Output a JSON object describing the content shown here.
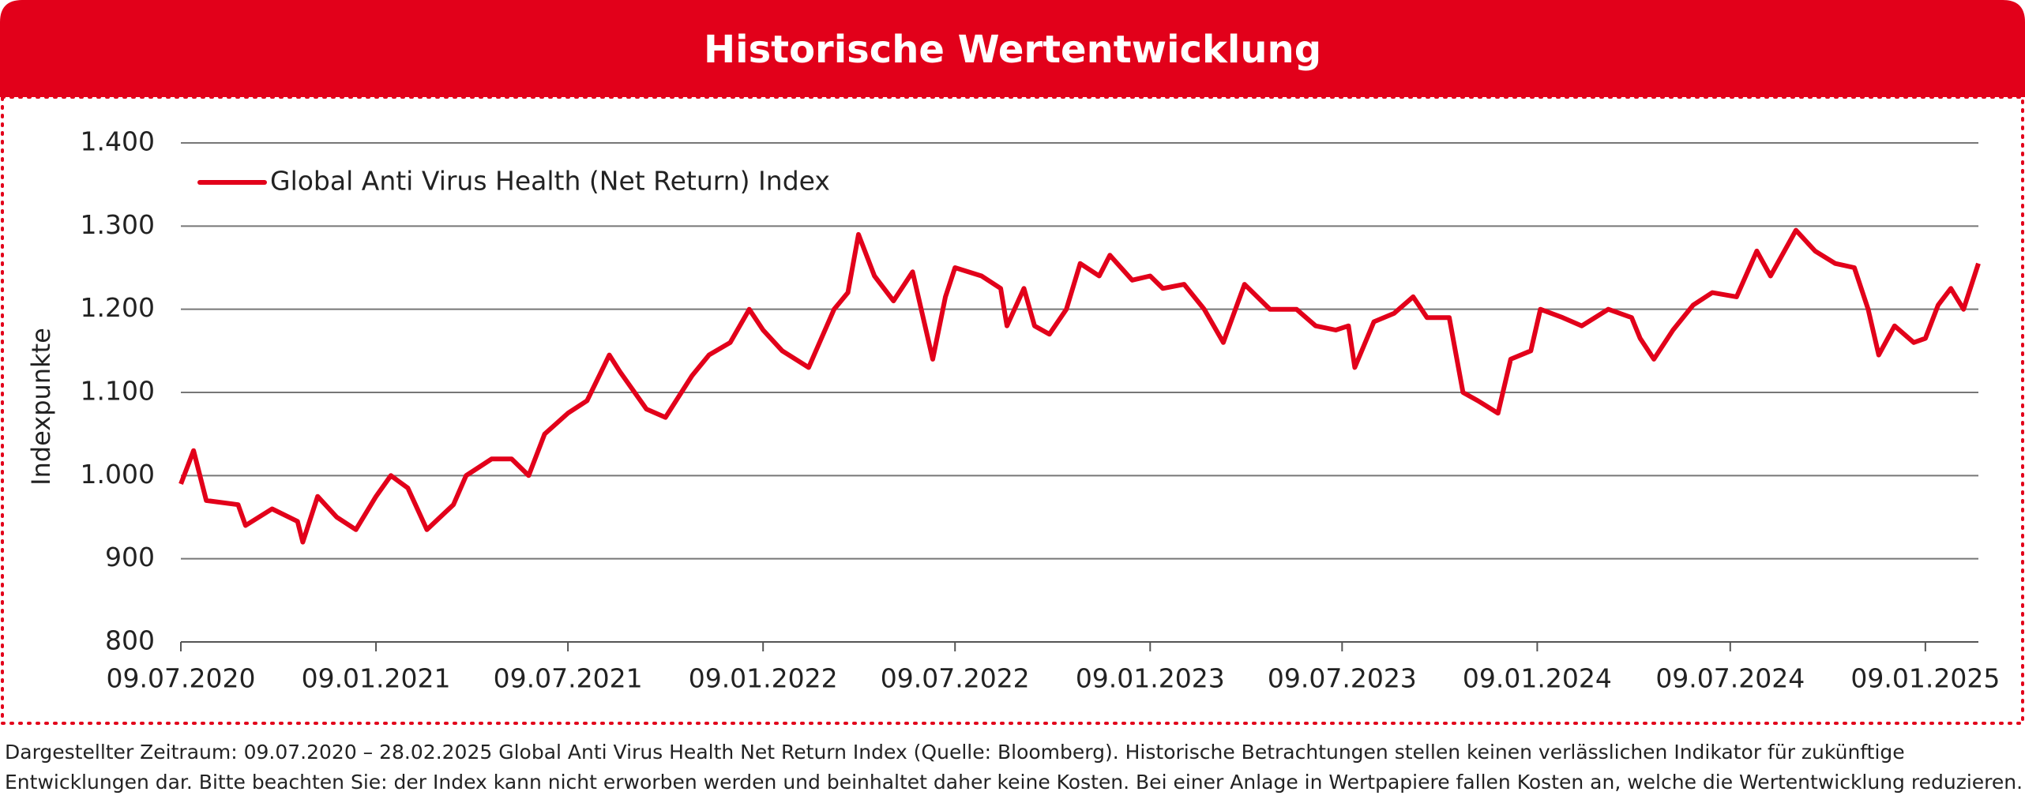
{
  "chart_data": {
    "type": "line",
    "title": "Historische Wertentwicklung",
    "y_label": "Indexpunkte",
    "footnote": [
      "Dargestellter Zeitraum: 09.07.2020 – 28.02.2025 Global Anti Virus Health Net Return Index (Quelle: Bloomberg). Historische Betrachtungen stellen keinen verlässlichen Indikator für zukünftige",
      "Entwicklungen dar. Bitte beachten Sie: der Index kann nicht erworben werden und beinhaltet daher keine Kosten. Bei einer Anlage in Wertpapiere fallen Kosten an, welche die Wertentwicklung reduzieren."
    ],
    "x": [
      "2020-07-09",
      "2020-07-21",
      "2020-08-02",
      "2020-09-01",
      "2020-09-08",
      "2020-10-03",
      "2020-10-27",
      "2020-11-01",
      "2020-11-15",
      "2020-12-03",
      "2020-12-21",
      "2021-01-09",
      "2021-01-23",
      "2021-02-08",
      "2021-02-26",
      "2021-03-23",
      "2021-04-04",
      "2021-04-28",
      "2021-05-17",
      "2021-06-02",
      "2021-06-17",
      "2021-07-09",
      "2021-07-27",
      "2021-08-17",
      "2021-08-27",
      "2021-09-21",
      "2021-10-09",
      "2021-11-03",
      "2021-11-19",
      "2021-12-09",
      "2021-12-27",
      "2022-01-09",
      "2022-01-27",
      "2022-02-21",
      "2022-03-17",
      "2022-03-30",
      "2022-04-09",
      "2022-04-24",
      "2022-05-12",
      "2022-05-30",
      "2022-06-18",
      "2022-06-30",
      "2022-07-09",
      "2022-08-03",
      "2022-08-21",
      "2022-08-27",
      "2022-09-12",
      "2022-09-22",
      "2022-10-06",
      "2022-10-22",
      "2022-11-04",
      "2022-11-22",
      "2022-12-02",
      "2022-12-23",
      "2023-01-09",
      "2023-01-21",
      "2023-02-10",
      "2023-03-01",
      "2023-03-19",
      "2023-04-08",
      "2023-05-02",
      "2023-05-27",
      "2023-06-14",
      "2023-07-03",
      "2023-07-15",
      "2023-07-21",
      "2023-08-08",
      "2023-08-27",
      "2023-09-14",
      "2023-09-27",
      "2023-10-18",
      "2023-10-31",
      "2023-11-14",
      "2023-12-03",
      "2023-12-15",
      "2024-01-03",
      "2024-01-12",
      "2024-02-02",
      "2024-02-20",
      "2024-03-16",
      "2024-04-07",
      "2024-04-15",
      "2024-04-28",
      "2024-05-16",
      "2024-06-04",
      "2024-06-22",
      "2024-07-15",
      "2024-08-03",
      "2024-08-16",
      "2024-09-09",
      "2024-09-27",
      "2024-10-16",
      "2024-11-03",
      "2024-11-16",
      "2024-11-26",
      "2024-12-11",
      "2024-12-29",
      "2025-01-09",
      "2025-01-21",
      "2025-02-02",
      "2025-02-14",
      "2025-02-28"
    ],
    "series": [
      {
        "name": "Global Anti Virus Health (Net Return) Index",
        "color": "#e2001a",
        "values": [
          990,
          1030,
          970,
          965,
          940,
          960,
          945,
          920,
          975,
          950,
          935,
          975,
          1000,
          985,
          935,
          965,
          1000,
          1020,
          1020,
          1000,
          1050,
          1075,
          1090,
          1145,
          1125,
          1080,
          1070,
          1120,
          1145,
          1160,
          1200,
          1175,
          1150,
          1130,
          1200,
          1220,
          1290,
          1240,
          1210,
          1245,
          1140,
          1215,
          1250,
          1240,
          1225,
          1180,
          1225,
          1180,
          1170,
          1200,
          1255,
          1240,
          1265,
          1235,
          1240,
          1225,
          1230,
          1200,
          1160,
          1230,
          1200,
          1200,
          1180,
          1175,
          1180,
          1130,
          1185,
          1195,
          1215,
          1190,
          1190,
          1100,
          1090,
          1075,
          1140,
          1150,
          1200,
          1190,
          1180,
          1200,
          1190,
          1165,
          1140,
          1175,
          1205,
          1220,
          1215,
          1270,
          1240,
          1295,
          1270,
          1255,
          1250,
          1200,
          1145,
          1180,
          1160,
          1165,
          1205,
          1225,
          1200,
          1255
        ]
      }
    ],
    "xlim": [
      "2020-07-09",
      "2025-02-28"
    ],
    "xticks": [
      {
        "value": "2020-07-09",
        "label": "09.07.2020"
      },
      {
        "value": "2021-01-09",
        "label": "09.01.2021"
      },
      {
        "value": "2021-07-09",
        "label": "09.07.2021"
      },
      {
        "value": "2022-01-09",
        "label": "09.01.2022"
      },
      {
        "value": "2022-07-09",
        "label": "09.07.2022"
      },
      {
        "value": "2023-01-09",
        "label": "09.01.2023"
      },
      {
        "value": "2023-07-09",
        "label": "09.07.2023"
      },
      {
        "value": "2024-01-09",
        "label": "09.01.2024"
      },
      {
        "value": "2024-07-09",
        "label": "09.07.2024"
      },
      {
        "value": "2025-01-09",
        "label": "09.01.2025"
      }
    ],
    "ylim": [
      800,
      1400
    ],
    "yticks": [
      800,
      900,
      {
        "value": 1000,
        "label": "1.000"
      },
      {
        "value": 1100,
        "label": "1.100"
      },
      {
        "value": 1200,
        "label": "1.200"
      },
      {
        "value": 1300,
        "label": "1.300"
      },
      {
        "value": 1400,
        "label": "1.400"
      }
    ],
    "grid": true,
    "legend": "top-left"
  }
}
